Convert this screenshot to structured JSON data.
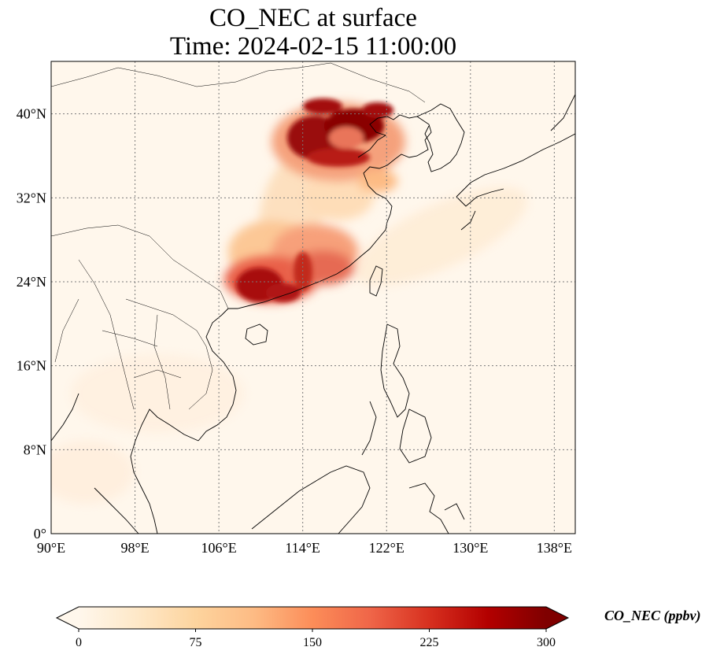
{
  "title": {
    "line1": "CO_NEC at surface",
    "line2": "Time: 2024-02-15 11:00:00"
  },
  "map": {
    "extent": {
      "lon": [
        90,
        140
      ],
      "lat": [
        0,
        45
      ]
    },
    "lon_ticks": [
      90,
      98,
      106,
      114,
      122,
      130,
      138
    ],
    "lon_tick_labels": [
      "90°E",
      "98°E",
      "106°E",
      "114°E",
      "122°E",
      "130°E",
      "138°E"
    ],
    "lat_ticks": [
      0,
      8,
      16,
      24,
      32,
      40
    ],
    "lat_tick_labels": [
      "0°",
      "8°N",
      "16°N",
      "24°N",
      "32°N",
      "40°N"
    ],
    "gridlines": "dotted",
    "plumes": [
      {
        "region": "North China Plain",
        "level": "high"
      },
      {
        "region": "South China (Guangdong/Guangxi)",
        "level": "high"
      },
      {
        "region": "Central China corridor",
        "level": "moderate"
      }
    ]
  },
  "colorbar": {
    "label": "CO_NEC (ppbv)",
    "min": 0,
    "max": 300,
    "ticks": [
      0,
      75,
      150,
      225,
      300
    ],
    "tick_labels": [
      "0",
      "75",
      "150",
      "225",
      "300"
    ],
    "extend": "both",
    "colors": [
      "#fff7ec",
      "#fee8c8",
      "#fdd49e",
      "#fdbb84",
      "#fc8d59",
      "#ef6548",
      "#d7301f",
      "#b30000",
      "#7f0000"
    ]
  }
}
